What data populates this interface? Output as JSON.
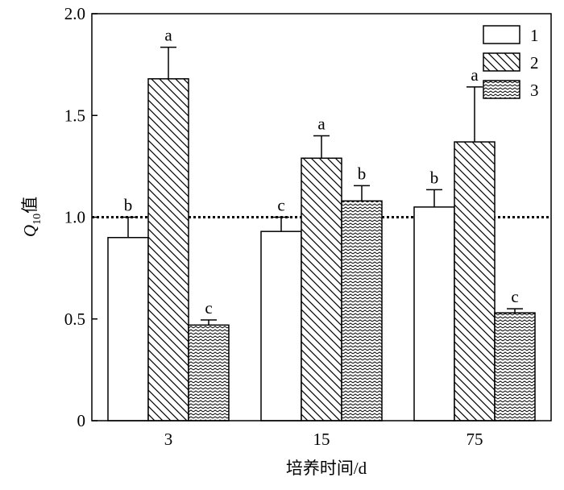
{
  "chart_data": {
    "type": "bar",
    "categories": [
      "3",
      "15",
      "75"
    ],
    "series": [
      {
        "name": "1",
        "color": "#ffffff",
        "pattern": "none",
        "values": [
          0.9,
          0.93,
          1.05
        ],
        "errors": [
          0.1,
          0.07,
          0.085
        ],
        "letters": [
          "b",
          "c",
          "b"
        ]
      },
      {
        "name": "2",
        "color": "#ffffff",
        "pattern": "hatch",
        "values": [
          1.68,
          1.29,
          1.37
        ],
        "errors": [
          0.155,
          0.11,
          0.27
        ],
        "letters": [
          "a",
          "a",
          "a"
        ]
      },
      {
        "name": "3",
        "color": "#ffffff",
        "pattern": "zigzag",
        "values": [
          0.47,
          1.08,
          0.53
        ],
        "errors": [
          0.025,
          0.075,
          0.02
        ],
        "letters": [
          "c",
          "b",
          "c"
        ]
      }
    ],
    "ylim": [
      0,
      2
    ],
    "yticks": [
      0,
      0.5,
      {
        "value": 1,
        "label": "1.0"
      },
      1.5,
      {
        "value": 2,
        "label": "2.0"
      }
    ],
    "reference_line": 1,
    "y_label": [
      "Q",
      "10",
      "值"
    ],
    "x_label": "培养时间/d",
    "legend": "upper right"
  }
}
